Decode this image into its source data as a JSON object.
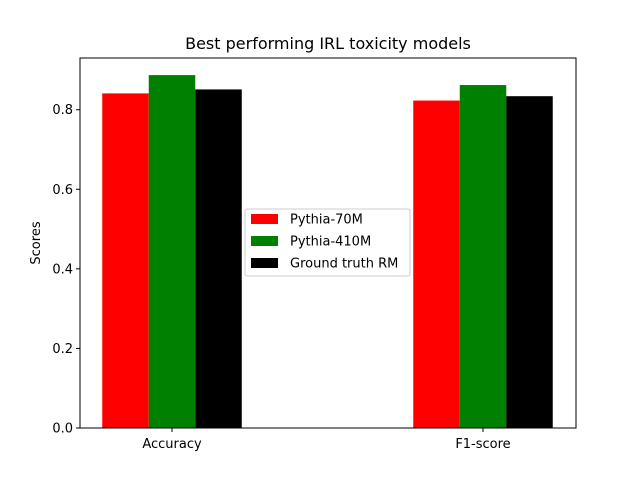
{
  "chart_data": {
    "type": "bar",
    "title": "Best performing IRL toxicity models",
    "xlabel": "",
    "ylabel": "Scores",
    "categories": [
      "Accuracy",
      "F1-score"
    ],
    "series": [
      {
        "name": "Pythia-70M",
        "values": [
          0.841,
          0.823
        ],
        "color": "#ff0000"
      },
      {
        "name": "Pythia-410M",
        "values": [
          0.887,
          0.862
        ],
        "color": "#008000"
      },
      {
        "name": "Ground truth RM",
        "values": [
          0.851,
          0.834
        ],
        "color": "#000000"
      }
    ],
    "ylim": [
      0,
      0.93
    ],
    "yticks": [
      "0.0",
      "0.2",
      "0.4",
      "0.6",
      "0.8"
    ],
    "yticks_values": [
      0.0,
      0.2,
      0.4,
      0.6,
      0.8
    ],
    "grid": false,
    "legend_position": "center"
  }
}
